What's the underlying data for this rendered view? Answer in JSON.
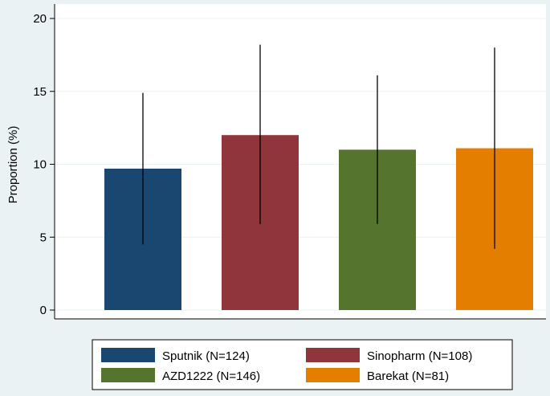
{
  "chart_data": {
    "type": "bar",
    "title": "",
    "xlabel": "",
    "ylabel": "Proportion (%)",
    "ylim": [
      0,
      20
    ],
    "yticks": [
      0,
      5,
      10,
      15,
      20
    ],
    "grid": "horizontal",
    "legend_position": "bottom",
    "series": [
      {
        "name": "Sputnik (N=124)",
        "value": 9.7,
        "ci_low": 4.5,
        "ci_high": 14.9,
        "color": "#1a476f"
      },
      {
        "name": "Sinopharm (N=108)",
        "value": 12.0,
        "ci_low": 5.9,
        "ci_high": 18.2,
        "color": "#90353b"
      },
      {
        "name": "AZD1222 (N=146)",
        "value": 11.0,
        "ci_low": 5.9,
        "ci_high": 16.1,
        "color": "#55752f"
      },
      {
        "name": "Barekat (N=81)",
        "value": 11.1,
        "ci_low": 4.2,
        "ci_high": 18.0,
        "color": "#e37e00"
      }
    ]
  }
}
